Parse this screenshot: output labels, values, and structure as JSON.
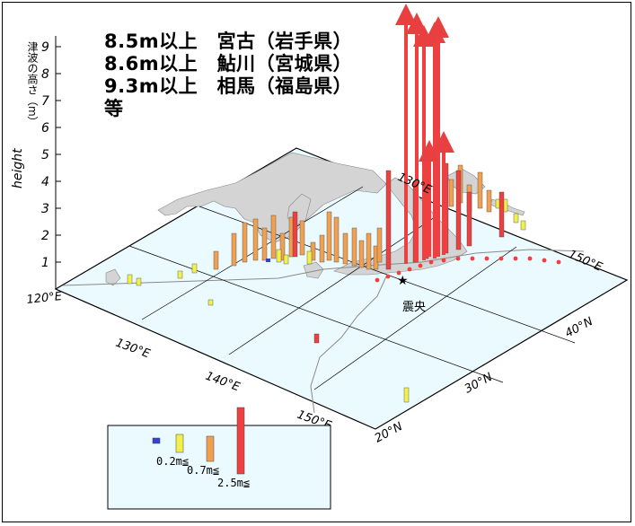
{
  "notes": [
    "8.5m以上　宮古（岩手県）",
    "8.6m以上　鮎川（宮城県）",
    "9.3m以上　相馬（福島県）",
    "等"
  ],
  "vertical_axis": {
    "label_ja": "津波の高さ（m）",
    "label_en": "height",
    "ticks": [
      "1",
      "2",
      "3",
      "4",
      "5",
      "6",
      "7",
      "8",
      "9"
    ]
  },
  "longitude_labels": [
    "120°E",
    "130°E",
    "140°E",
    "150°E"
  ],
  "latitude_labels": [
    "20°N",
    "30°N",
    "40°N"
  ],
  "top_labels": [
    "130°E",
    "150°E"
  ],
  "epicenter_label": "震央",
  "legend": {
    "items": [
      {
        "label": "",
        "color": "#3344cc"
      },
      {
        "label": "0.2m≦",
        "color": "#f2f04a"
      },
      {
        "label": "0.7m≦",
        "color": "#f0a050"
      },
      {
        "label": "2.5m≦",
        "color": "#ee4040"
      }
    ]
  },
  "colors": {
    "ocean": "#eafaff",
    "land": "#d4d4d4",
    "small": "#f2f04a",
    "medium": "#f0a050",
    "large": "#ee4040",
    "tiny": "#3344cc"
  }
}
